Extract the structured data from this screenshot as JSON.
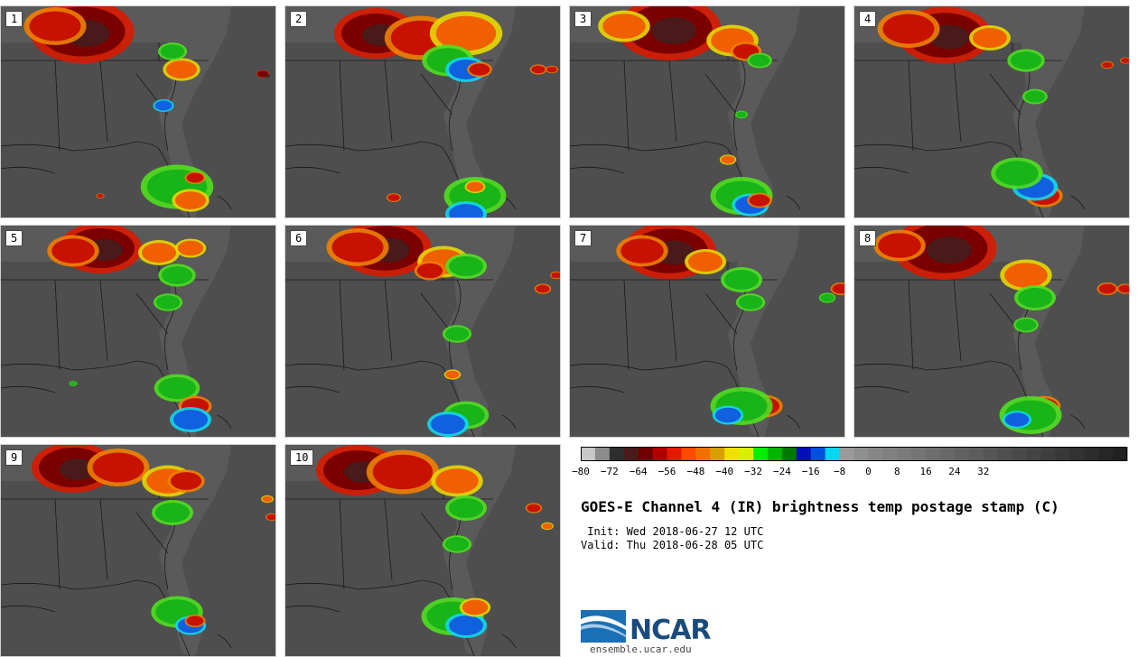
{
  "panels": [
    {
      "label": "1"
    },
    {
      "label": "2"
    },
    {
      "label": "3"
    },
    {
      "label": "4"
    },
    {
      "label": "5"
    },
    {
      "label": "6"
    },
    {
      "label": "7"
    },
    {
      "label": "8"
    },
    {
      "label": "9"
    },
    {
      "label": "10"
    }
  ],
  "colorbar": {
    "colors": [
      "#c8c8c8",
      "#8c8c8c",
      "#2e2e2e",
      "#4a1a1a",
      "#6e0000",
      "#b20000",
      "#e21a00",
      "#ff4a00",
      "#f07000",
      "#d8a000",
      "#f0e000",
      "#d8f000",
      "#00f000",
      "#00b400",
      "#007800",
      "#0010b4",
      "#0050e0",
      "#00d8f0",
      "#9a9a9a",
      "#8e8e8e",
      "#868686",
      "#808080",
      "#7a7a7a",
      "#747474",
      "#6e6e6e",
      "#686868",
      "#626262",
      "#5c5c5c",
      "#565656",
      "#505050",
      "#4a4a4a",
      "#444444",
      "#3e3e3e",
      "#383838",
      "#323232",
      "#2c2c2c",
      "#262626",
      "#202020"
    ],
    "tick_labels": [
      "−80",
      "−72",
      "−64",
      "−56",
      "−48",
      "−40",
      "−32",
      "−24",
      "−16",
      "−8",
      "0",
      "8",
      "16",
      "24",
      "32"
    ]
  },
  "title": "GOES-E Channel 4 (IR) brightness temp postage stamp (C)",
  "init_line": " Init: Wed 2018-06-27 12 UTC",
  "valid_line": "Valid: Thu 2018-06-28 05 UTC",
  "logo": {
    "text": "NCAR",
    "url": "ensemble.ucar.edu",
    "color": "#1a4b7d"
  }
}
